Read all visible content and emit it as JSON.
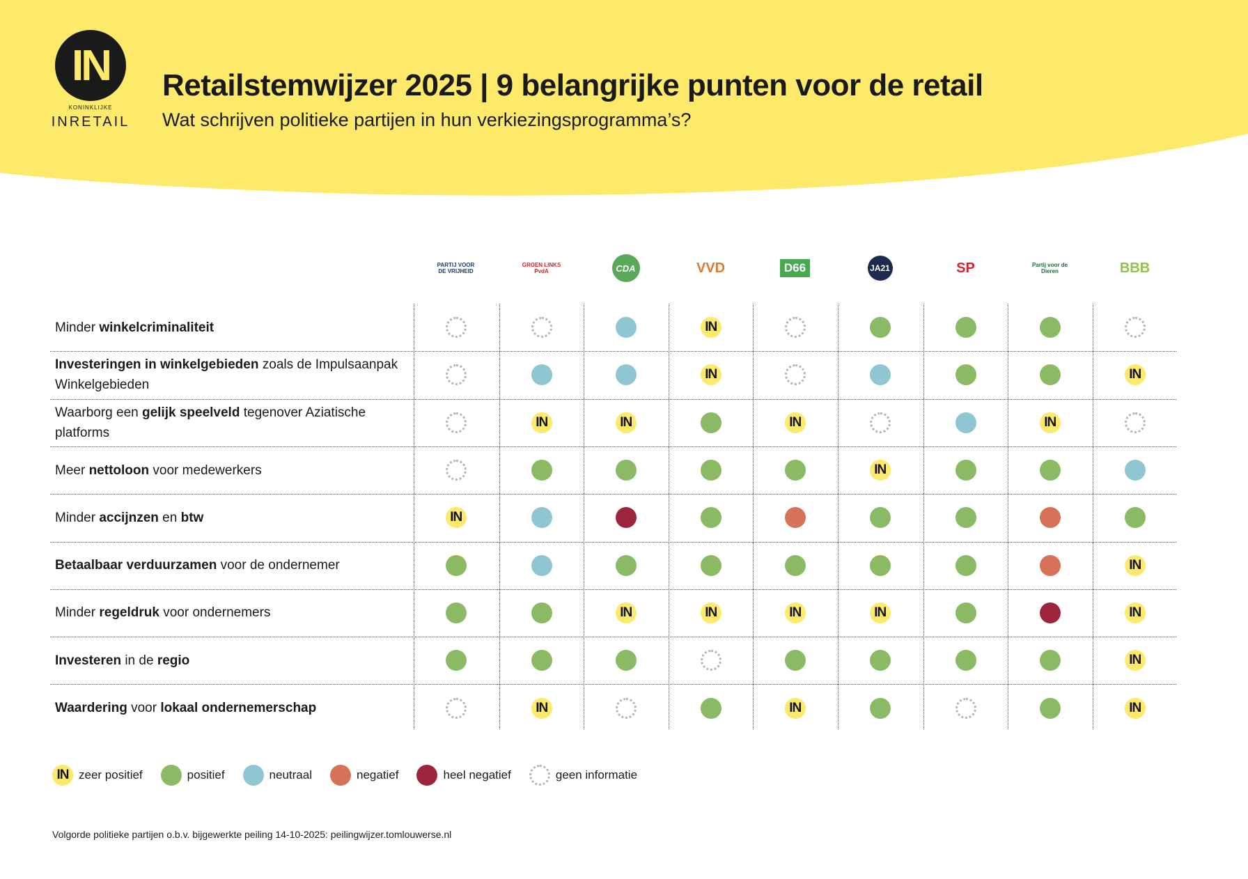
{
  "header": {
    "logo_text": "IN",
    "logo_sub": "KONINKLIJKE",
    "logo_name": "INRETAIL",
    "title": "Retailstemwijzer 2025 | 9 belangrijke punten voor de retail",
    "subtitle": "Wat schrijven politieke partijen in hun verkiezingsprogramma’s?",
    "band_color": "#fde96a"
  },
  "parties": [
    {
      "name": "PVV",
      "logo_text": "PARTIJ VOOR DE VRIJHEID",
      "color": "#1f3a6b"
    },
    {
      "name": "GroenLinks-PvdA",
      "logo_text": "GROEN LINKS PvdA",
      "color": "#d7242c"
    },
    {
      "name": "CDA",
      "logo_text": "CDA",
      "color": "#5aa85a"
    },
    {
      "name": "VVD",
      "logo_text": "VVD",
      "color": "#e17b2f"
    },
    {
      "name": "D66",
      "logo_text": "D66",
      "color": "#4aa852"
    },
    {
      "name": "JA21",
      "logo_text": "JA21",
      "color": "#1c2a4d"
    },
    {
      "name": "SP",
      "logo_text": "SP",
      "color": "#d7242c"
    },
    {
      "name": "Partij voor de Dieren",
      "logo_text": "Partij voor de Dieren",
      "color": "#1f6b3a"
    },
    {
      "name": "BBB",
      "logo_text": "BBB",
      "color": "#93c24e"
    }
  ],
  "rows": [
    {
      "label": [
        {
          "t": "Minder ",
          "b": false
        },
        {
          "t": "winkelcriminaliteit",
          "b": true
        }
      ],
      "ratings": [
        "geen_informatie",
        "geen_informatie",
        "neutraal",
        "zeer_positief",
        "geen_informatie",
        "positief",
        "positief",
        "positief",
        "geen_informatie"
      ]
    },
    {
      "label": [
        {
          "t": "Investeringen in winkelgebieden",
          "b": true
        },
        {
          "t": " zoals de Impulsaanpak Winkelgebieden",
          "b": false
        }
      ],
      "ratings": [
        "geen_informatie",
        "neutraal",
        "neutraal",
        "zeer_positief",
        "geen_informatie",
        "neutraal",
        "positief",
        "positief",
        "zeer_positief"
      ]
    },
    {
      "label": [
        {
          "t": "Waarborg een ",
          "b": false
        },
        {
          "t": "gelijk speelveld",
          "b": true
        },
        {
          "t": " tegenover Aziatische platforms",
          "b": false
        }
      ],
      "ratings": [
        "geen_informatie",
        "zeer_positief",
        "zeer_positief",
        "positief",
        "zeer_positief",
        "geen_informatie",
        "neutraal",
        "zeer_positief",
        "geen_informatie"
      ]
    },
    {
      "label": [
        {
          "t": "Meer ",
          "b": false
        },
        {
          "t": "nettoloon",
          "b": true
        },
        {
          "t": " voor medewerkers",
          "b": false
        }
      ],
      "ratings": [
        "geen_informatie",
        "positief",
        "positief",
        "positief",
        "positief",
        "zeer_positief",
        "positief",
        "positief",
        "neutraal"
      ]
    },
    {
      "label": [
        {
          "t": "Minder ",
          "b": false
        },
        {
          "t": "accijnzen",
          "b": true
        },
        {
          "t": " en ",
          "b": false
        },
        {
          "t": "btw",
          "b": true
        }
      ],
      "ratings": [
        "zeer_positief",
        "neutraal",
        "heel_negatief",
        "positief",
        "negatief",
        "positief",
        "positief",
        "negatief",
        "positief"
      ]
    },
    {
      "label": [
        {
          "t": "Betaalbaar verduurzamen",
          "b": true
        },
        {
          "t": " voor de ondernemer",
          "b": false
        }
      ],
      "ratings": [
        "positief",
        "neutraal",
        "positief",
        "positief",
        "positief",
        "positief",
        "positief",
        "negatief",
        "zeer_positief"
      ]
    },
    {
      "label": [
        {
          "t": "Minder ",
          "b": false
        },
        {
          "t": "regeldruk",
          "b": true
        },
        {
          "t": " voor ondernemers",
          "b": false
        }
      ],
      "ratings": [
        "positief",
        "positief",
        "zeer_positief",
        "zeer_positief",
        "zeer_positief",
        "zeer_positief",
        "positief",
        "heel_negatief",
        "zeer_positief"
      ]
    },
    {
      "label": [
        {
          "t": "Investeren",
          "b": true
        },
        {
          "t": " in de ",
          "b": false
        },
        {
          "t": "regio",
          "b": true
        }
      ],
      "ratings": [
        "positief",
        "positief",
        "positief",
        "geen_informatie",
        "positief",
        "positief",
        "positief",
        "positief",
        "zeer_positief"
      ]
    },
    {
      "label": [
        {
          "t": "Waardering",
          "b": true
        },
        {
          "t": " voor ",
          "b": false
        },
        {
          "t": "lokaal ondernemerschap",
          "b": true
        }
      ],
      "ratings": [
        "geen_informatie",
        "zeer_positief",
        "geen_informatie",
        "positief",
        "zeer_positief",
        "positief",
        "geen_informatie",
        "positief",
        "zeer_positief"
      ]
    }
  ],
  "legend": [
    {
      "key": "zeer_positief",
      "label": "zeer positief",
      "symbol": "IN",
      "color": "#fde96a"
    },
    {
      "key": "positief",
      "label": "positief",
      "color": "#8aba63"
    },
    {
      "key": "neutraal",
      "label": "neutraal",
      "color": "#8fc6d2"
    },
    {
      "key": "negatief",
      "label": "negatief",
      "color": "#d67257"
    },
    {
      "key": "heel_negatief",
      "label": "heel negatief",
      "color": "#9b263b"
    },
    {
      "key": "geen_informatie",
      "label": "geen informatie",
      "color": "#b5b5b5"
    }
  ],
  "footnote": "Volgorde politieke partijen o.b.v. bijgewerkte peiling 14-10-2025: peilingwijzer.tomlouwerse.nl"
}
